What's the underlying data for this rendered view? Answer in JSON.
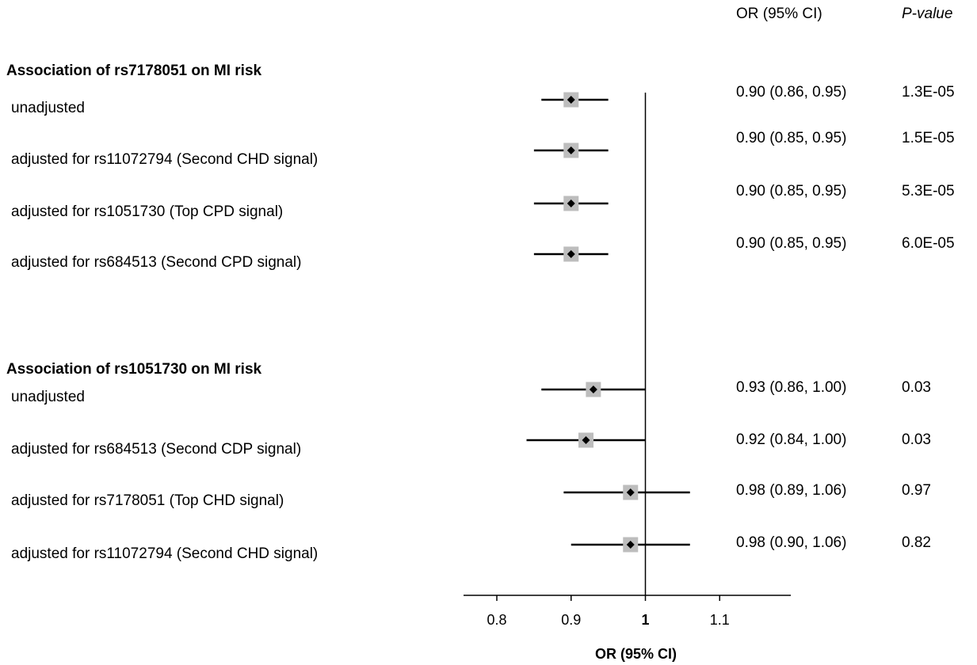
{
  "chart_data": {
    "type": "forest",
    "columns": {
      "or_header": "OR (95% CI)",
      "p_header": "P-value"
    },
    "xlabel": "OR (95% CI)",
    "xlim": [
      0.75,
      1.2
    ],
    "xticks": [
      0.8,
      0.9,
      1,
      1.1
    ],
    "xtick_labels": [
      "0.8",
      "0.9",
      "1",
      "1.1"
    ],
    "reference_line": 1,
    "groups": [
      {
        "title": "Association of rs7178051 on MI risk",
        "rows": [
          {
            "label": "unadjusted",
            "or": 0.9,
            "lo": 0.86,
            "hi": 0.95,
            "or_text": "0.90 (0.86, 0.95)",
            "p": "1.3E-05"
          },
          {
            "label": "adjusted for rs11072794 (Second CHD signal)",
            "or": 0.9,
            "lo": 0.85,
            "hi": 0.95,
            "or_text": "0.90 (0.85, 0.95)",
            "p": "1.5E-05"
          },
          {
            "label": "adjusted for rs1051730 (Top CPD signal)",
            "or": 0.9,
            "lo": 0.85,
            "hi": 0.95,
            "or_text": "0.90 (0.85, 0.95)",
            "p": "5.3E-05"
          },
          {
            "label": "adjusted for rs684513 (Second CPD signal)",
            "or": 0.9,
            "lo": 0.85,
            "hi": 0.95,
            "or_text": "0.90 (0.85, 0.95)",
            "p": "6.0E-05"
          }
        ]
      },
      {
        "title": "Association of rs1051730 on MI risk",
        "rows": [
          {
            "label": "unadjusted",
            "or": 0.93,
            "lo": 0.86,
            "hi": 1.0,
            "or_text": "0.93 (0.86, 1.00)",
            "p": "0.03"
          },
          {
            "label": "adjusted for rs684513 (Second CDP signal)",
            "or": 0.92,
            "lo": 0.84,
            "hi": 1.0,
            "or_text": "0.92 (0.84, 1.00)",
            "p": "0.03"
          },
          {
            "label": "adjusted for rs7178051 (Top CHD signal)",
            "or": 0.98,
            "lo": 0.89,
            "hi": 1.06,
            "or_text": "0.98 (0.89, 1.06)",
            "p": "0.97"
          },
          {
            "label": "adjusted for rs11072794 (Second CHD signal)",
            "or": 0.98,
            "lo": 0.9,
            "hi": 1.06,
            "or_text": "0.98 (0.90, 1.06)",
            "p": "0.82"
          }
        ]
      }
    ],
    "colors": {
      "marker_box": "#bdbdbd",
      "line": "#000000"
    }
  }
}
